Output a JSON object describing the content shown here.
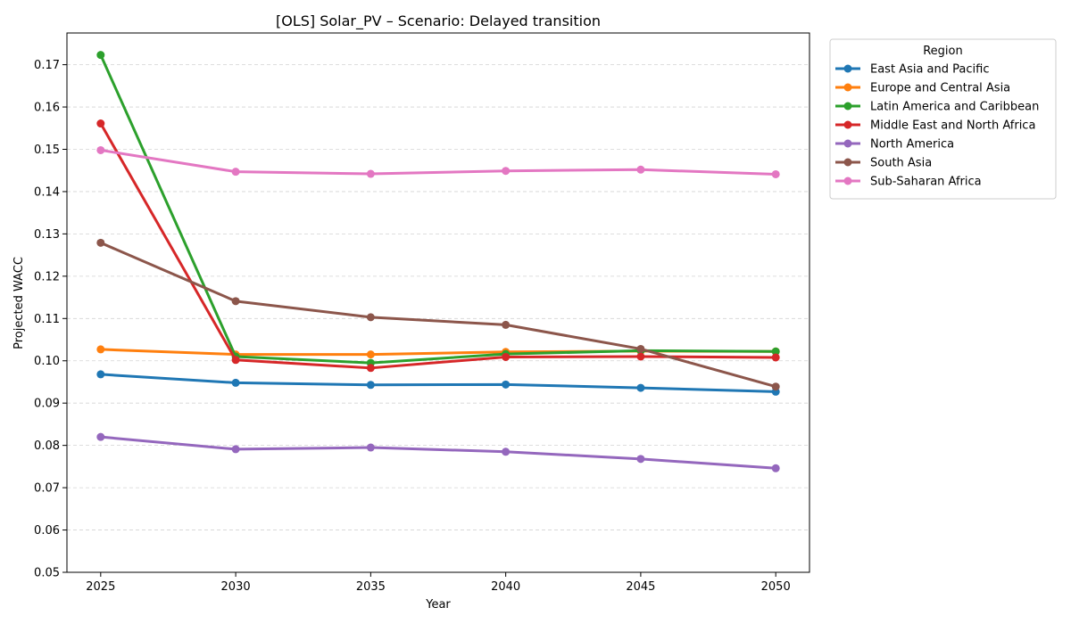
{
  "chart_data": {
    "type": "line",
    "title": "[OLS] Solar_PV – Scenario: Delayed transition",
    "xlabel": "Year",
    "ylabel": "Projected WACC",
    "x": [
      2025,
      2030,
      2035,
      2040,
      2045,
      2050
    ],
    "xlim": [
      2023.75,
      2051.25
    ],
    "ylim": [
      0.05,
      0.1775
    ],
    "yticks": [
      0.05,
      0.06,
      0.07,
      0.08,
      0.09,
      0.1,
      0.11,
      0.12,
      0.13,
      0.14,
      0.15,
      0.16,
      0.17
    ],
    "ytick_labels": [
      "0.05",
      "0.06",
      "0.07",
      "0.08",
      "0.09",
      "0.10",
      "0.11",
      "0.12",
      "0.13",
      "0.14",
      "0.15",
      "0.16",
      "0.17"
    ],
    "xtick_labels": [
      "2025",
      "2030",
      "2035",
      "2040",
      "2045",
      "2050"
    ],
    "grid": "y-only dashed",
    "legend": {
      "title": "Region",
      "placement": "outside-top-right"
    },
    "series": [
      {
        "name": "East Asia and Pacific",
        "color": "#1f77b4",
        "values": [
          0.0968,
          0.0948,
          0.0943,
          0.0944,
          0.0936,
          0.0927
        ]
      },
      {
        "name": "Europe and Central Asia",
        "color": "#ff7f0e",
        "values": [
          0.1027,
          0.1015,
          0.1015,
          0.1021,
          0.1023,
          0.1022
        ]
      },
      {
        "name": "Latin America and Caribbean",
        "color": "#2ca02c",
        "values": [
          0.1723,
          0.101,
          0.0995,
          0.1016,
          0.1024,
          0.1022
        ]
      },
      {
        "name": "Middle East and North Africa",
        "color": "#d62728",
        "values": [
          0.1561,
          0.1002,
          0.0983,
          0.1009,
          0.101,
          0.1008
        ]
      },
      {
        "name": "North America",
        "color": "#9467bd",
        "values": [
          0.082,
          0.0791,
          0.0795,
          0.0785,
          0.0768,
          0.0746
        ]
      },
      {
        "name": "South Asia",
        "color": "#8c564b",
        "values": [
          0.1279,
          0.1141,
          0.1103,
          0.1085,
          0.1028,
          0.0939
        ]
      },
      {
        "name": "Sub-Saharan Africa",
        "color": "#e377c2",
        "values": [
          0.1498,
          0.1447,
          0.1442,
          0.1449,
          0.1452,
          0.1441
        ]
      }
    ]
  }
}
